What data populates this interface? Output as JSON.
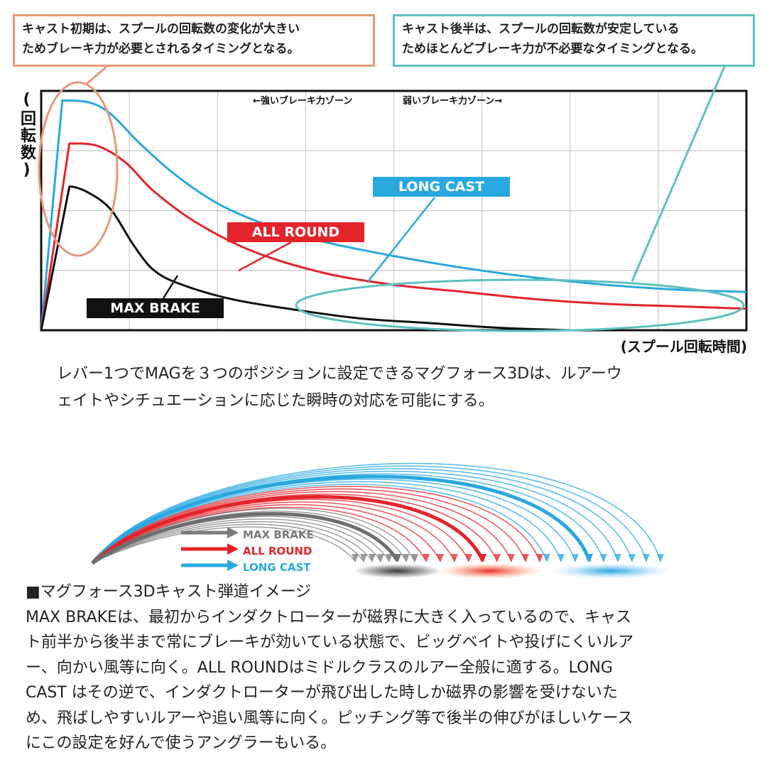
{
  "callouts": {
    "left": [
      "キャスト初期は、スプールの回転数の変化が大きい",
      "ためブレーキ力が必要とされるタイミングとなる。"
    ],
    "right": [
      "キャスト後半は、スプールの回転数が安定している",
      "ためほとんどブレーキ力が不必要なタイミングとなる。"
    ]
  },
  "chart_data": {
    "type": "line",
    "title": "",
    "ylabel": "(回転数)",
    "xlabel": "(スプール回転時間)",
    "zones": {
      "strong": "←強いブレーキ力ゾーン",
      "weak": "弱いブレーキ力ゾーン→"
    },
    "grid": true,
    "xlim": [
      0,
      100
    ],
    "ylim": [
      0,
      100
    ],
    "series": [
      {
        "name": "LONG CAST",
        "color": "#29a8e0",
        "peak_x": 3,
        "peak_y": 96,
        "x": [
          0,
          3,
          7,
          10,
          14,
          19,
          25,
          32,
          40,
          50,
          60,
          70,
          80,
          90,
          100
        ],
        "y": [
          0,
          96,
          95,
          90,
          78,
          65,
          53,
          44,
          37,
          31,
          26,
          22,
          19,
          17,
          16
        ]
      },
      {
        "name": "ALL ROUND",
        "color": "#e3242b",
        "peak_x": 4,
        "peak_y": 78,
        "x": [
          0,
          4,
          8,
          12,
          16,
          22,
          30,
          40,
          50,
          60,
          70,
          80,
          90,
          100
        ],
        "y": [
          0,
          78,
          77,
          70,
          58,
          45,
          33,
          24,
          19,
          16,
          13,
          11,
          10,
          9
        ]
      },
      {
        "name": "MAX BRAKE",
        "color": "#111111",
        "peak_x": 4,
        "peak_y": 60,
        "x": [
          0,
          4,
          7,
          10,
          13,
          16,
          20,
          27,
          35,
          45,
          55,
          65,
          75
        ],
        "y": [
          0,
          60,
          57,
          50,
          36,
          25,
          19,
          13,
          9,
          5,
          3,
          1,
          0
        ]
      }
    ]
  },
  "caption1": [
    "レバー1つでMAGを３つのポジションに設定できるマグフォース3Dは、ルアーウ",
    "ェイトやシチュエーションに応じた瞬時の対応を可能にする。"
  ],
  "trajectory": {
    "legend": [
      {
        "label": "MAX BRAKE",
        "color": "#7a7a7a"
      },
      {
        "label": "ALL ROUND",
        "color": "#e3242b"
      },
      {
        "label": "LONG CAST",
        "color": "#29a8e0"
      }
    ]
  },
  "description": [
    "■マグフォース3Dキャスト弾道イメージ",
    "MAX BRAKEは、最初からインダクトローターが磁界に大きく入っているので、キャス",
    "ト前半から後半まで常にブレーキが効いている状態で、ビッグベイトや投げにくいルア",
    "ー、向かい風等に向く。ALL ROUNDはミドルクラスのルアー全般に適する。LONG",
    "CAST はその逆で、インダクトローターが飛び出した時しか磁界の影響を受けないた",
    "め、飛ばしやすいルアーや追い風等に向く。ピッチング等で後半の伸びがほしいケース",
    "にこの設定を好んで使うアングラーもいる。"
  ]
}
